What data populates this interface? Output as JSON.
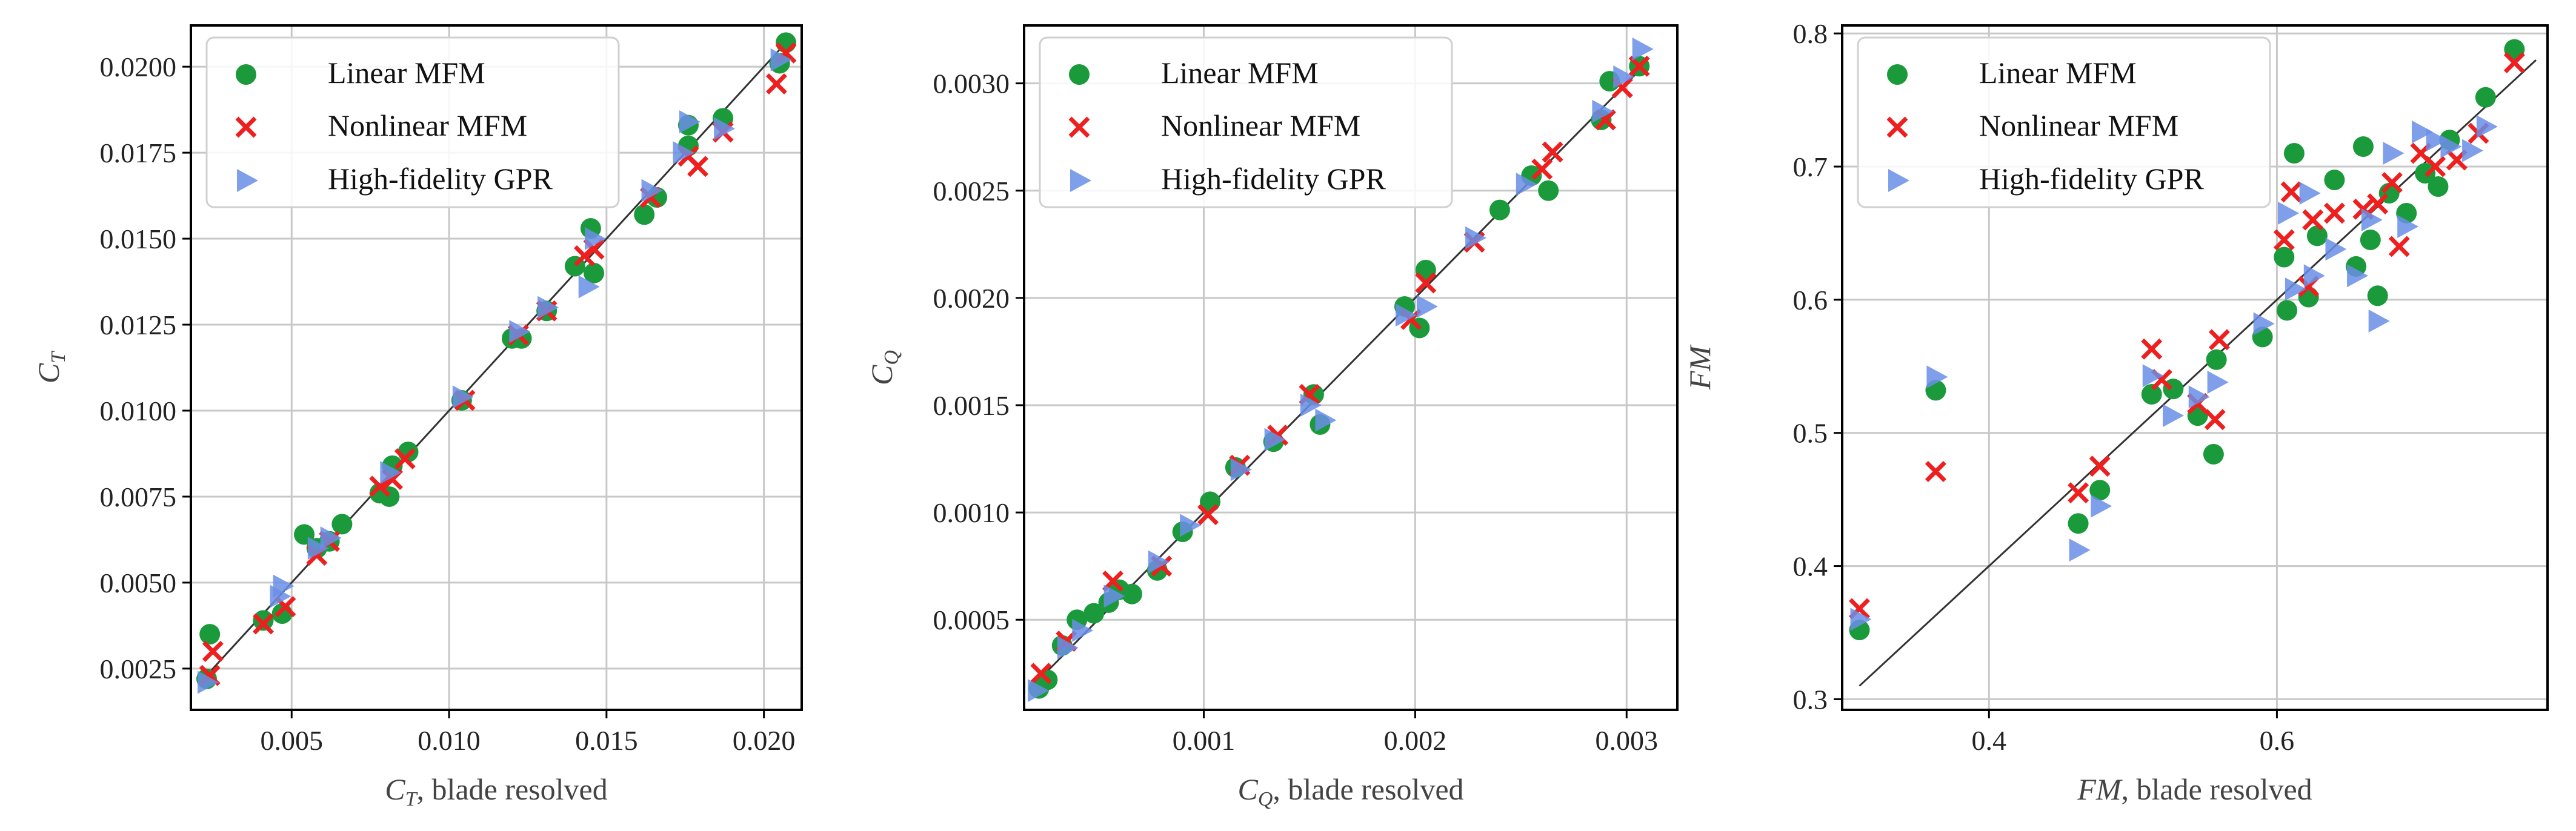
{
  "colors": {
    "linear": "#1a9a3a",
    "nonlinear": "#ee1f1f",
    "gpr": "#6a8ee6",
    "grid": "#c8c8c8",
    "diag": "#333333"
  },
  "legend_labels": [
    "Linear MFM",
    "Nonlinear MFM",
    "High-fidelity GPR"
  ],
  "chart_data": [
    {
      "type": "scatter",
      "ylabel": "C_T",
      "xlabel": "C_T, blade resolved",
      "xlim": [
        0.0018,
        0.0212
      ],
      "ylim": [
        0.0013,
        0.0212
      ],
      "xticks": [
        0.005,
        0.01,
        0.015,
        0.02
      ],
      "xtick_labels": [
        "0.005",
        "0.010",
        "0.015",
        "0.020"
      ],
      "yticks": [
        0.0025,
        0.005,
        0.0075,
        0.01,
        0.0125,
        0.015,
        0.0175,
        0.02
      ],
      "ytick_labels": [
        "0.0025",
        "0.0050",
        "0.0075",
        "0.0100",
        "0.0125",
        "0.0150",
        "0.0175",
        "0.0200"
      ],
      "grid": true,
      "legend_position": "upper-left",
      "diagonal": [
        0.0022,
        0.0208
      ],
      "series": [
        {
          "name": "Linear MFM",
          "marker": "circle",
          "points": [
            [
              0.0023,
              0.0022
            ],
            [
              0.0024,
              0.0035
            ],
            [
              0.0041,
              0.0039
            ],
            [
              0.0047,
              0.0041
            ],
            [
              0.0054,
              0.0064
            ],
            [
              0.0058,
              0.006
            ],
            [
              0.0062,
              0.0062
            ],
            [
              0.0066,
              0.0067
            ],
            [
              0.0078,
              0.0076
            ],
            [
              0.0081,
              0.0075
            ],
            [
              0.0082,
              0.0084
            ],
            [
              0.0087,
              0.0088
            ],
            [
              0.0104,
              0.0103
            ],
            [
              0.012,
              0.0121
            ],
            [
              0.0123,
              0.0121
            ],
            [
              0.0131,
              0.0129
            ],
            [
              0.014,
              0.0142
            ],
            [
              0.0146,
              0.014
            ],
            [
              0.0145,
              0.0153
            ],
            [
              0.0162,
              0.0157
            ],
            [
              0.0166,
              0.0162
            ],
            [
              0.0176,
              0.0177
            ],
            [
              0.0176,
              0.0183
            ],
            [
              0.0187,
              0.0185
            ],
            [
              0.0205,
              0.0201
            ],
            [
              0.0207,
              0.0207
            ]
          ]
        },
        {
          "name": "Nonlinear MFM",
          "marker": "x",
          "points": [
            [
              0.0024,
              0.0023
            ],
            [
              0.0025,
              0.003
            ],
            [
              0.0041,
              0.0038
            ],
            [
              0.0048,
              0.0043
            ],
            [
              0.0058,
              0.0058
            ],
            [
              0.0062,
              0.0062
            ],
            [
              0.0078,
              0.0078
            ],
            [
              0.0082,
              0.008
            ],
            [
              0.0086,
              0.0086
            ],
            [
              0.0105,
              0.0103
            ],
            [
              0.0122,
              0.0122
            ],
            [
              0.0131,
              0.0129
            ],
            [
              0.0143,
              0.0145
            ],
            [
              0.0146,
              0.0147
            ],
            [
              0.0164,
              0.0162
            ],
            [
              0.0176,
              0.0174
            ],
            [
              0.0179,
              0.0171
            ],
            [
              0.0187,
              0.0181
            ],
            [
              0.0204,
              0.0195
            ],
            [
              0.0207,
              0.0204
            ]
          ]
        },
        {
          "name": "High-fidelity GPR",
          "marker": "triangle",
          "points": [
            [
              0.0023,
              0.0021
            ],
            [
              0.0046,
              0.0046
            ],
            [
              0.0047,
              0.0049
            ],
            [
              0.0058,
              0.006
            ],
            [
              0.0062,
              0.0063
            ],
            [
              0.0081,
              0.0082
            ],
            [
              0.0104,
              0.0104
            ],
            [
              0.0122,
              0.0123
            ],
            [
              0.0131,
              0.013
            ],
            [
              0.0144,
              0.0136
            ],
            [
              0.0146,
              0.015
            ],
            [
              0.0164,
              0.0164
            ],
            [
              0.0174,
              0.0175
            ],
            [
              0.0176,
              0.0184
            ],
            [
              0.0187,
              0.0182
            ],
            [
              0.0205,
              0.0202
            ]
          ]
        }
      ]
    },
    {
      "type": "scatter",
      "ylabel": "C_Q",
      "xlabel": "C_Q, blade resolved",
      "xlim": [
        0.00015,
        0.00324
      ],
      "ylim": [
        8e-05,
        0.00327
      ],
      "xticks": [
        0.001,
        0.002,
        0.003
      ],
      "xtick_labels": [
        "0.001",
        "0.002",
        "0.003"
      ],
      "yticks": [
        0.0005,
        0.001,
        0.0015,
        0.002,
        0.0025,
        0.003
      ],
      "ytick_labels": [
        "0.0005",
        "0.0010",
        "0.0015",
        "0.0020",
        "0.0025",
        "0.0030"
      ],
      "grid": true,
      "legend_position": "upper-left",
      "diagonal": [
        0.0002,
        0.0031
      ],
      "series": [
        {
          "name": "Linear MFM",
          "marker": "circle",
          "points": [
            [
              0.00022,
              0.00018
            ],
            [
              0.00026,
              0.00022
            ],
            [
              0.00033,
              0.00038
            ],
            [
              0.0004,
              0.0005
            ],
            [
              0.00048,
              0.00053
            ],
            [
              0.00055,
              0.00058
            ],
            [
              0.0006,
              0.00064
            ],
            [
              0.00066,
              0.00062
            ],
            [
              0.00078,
              0.00073
            ],
            [
              0.0009,
              0.00091
            ],
            [
              0.00103,
              0.00105
            ],
            [
              0.00115,
              0.00121
            ],
            [
              0.00133,
              0.00133
            ],
            [
              0.00152,
              0.00155
            ],
            [
              0.00155,
              0.00141
            ],
            [
              0.00195,
              0.00196
            ],
            [
              0.00202,
              0.00186
            ],
            [
              0.00205,
              0.00213
            ],
            [
              0.0024,
              0.00241
            ],
            [
              0.00255,
              0.00257
            ],
            [
              0.00263,
              0.0025
            ],
            [
              0.00288,
              0.00283
            ],
            [
              0.00292,
              0.00301
            ],
            [
              0.00306,
              0.00308
            ]
          ]
        },
        {
          "name": "Nonlinear MFM",
          "marker": "x",
          "points": [
            [
              0.00023,
              0.00025
            ],
            [
              0.00035,
              0.0004
            ],
            [
              0.00057,
              0.00068
            ],
            [
              0.0008,
              0.00075
            ],
            [
              0.00102,
              0.00099
            ],
            [
              0.00117,
              0.00122
            ],
            [
              0.00135,
              0.00136
            ],
            [
              0.0015,
              0.00155
            ],
            [
              0.00198,
              0.0019
            ],
            [
              0.00205,
              0.00207
            ],
            [
              0.00228,
              0.00226
            ],
            [
              0.0026,
              0.0026
            ],
            [
              0.00265,
              0.00268
            ],
            [
              0.0029,
              0.00283
            ],
            [
              0.00298,
              0.00298
            ],
            [
              0.00306,
              0.00308
            ]
          ]
        },
        {
          "name": "High-fidelity GPR",
          "marker": "triangle",
          "points": [
            [
              0.00021,
              0.00017
            ],
            [
              0.00035,
              0.00037
            ],
            [
              0.00042,
              0.00045
            ],
            [
              0.00057,
              0.00061
            ],
            [
              0.00078,
              0.00077
            ],
            [
              0.00093,
              0.00094
            ],
            [
              0.00117,
              0.0012
            ],
            [
              0.00133,
              0.00134
            ],
            [
              0.0015,
              0.0015
            ],
            [
              0.00157,
              0.00143
            ],
            [
              0.00195,
              0.00192
            ],
            [
              0.00205,
              0.00196
            ],
            [
              0.00228,
              0.00228
            ],
            [
              0.00252,
              0.00253
            ],
            [
              0.00288,
              0.00287
            ],
            [
              0.00298,
              0.00303
            ],
            [
              0.00307,
              0.00316
            ]
          ]
        }
      ]
    },
    {
      "type": "scatter",
      "ylabel": "FM",
      "xlabel": "FM, blade resolved",
      "xlim": [
        0.298,
        0.788
      ],
      "ylim": [
        0.292,
        0.806
      ],
      "xticks": [
        0.4,
        0.6
      ],
      "xtick_labels": [
        "0.4",
        "0.6"
      ],
      "yticks": [
        0.3,
        0.4,
        0.5,
        0.6,
        0.7,
        0.8
      ],
      "ytick_labels": [
        "0.3",
        "0.4",
        "0.5",
        "0.6",
        "0.7",
        "0.8"
      ],
      "grid": true,
      "legend_position": "upper-left",
      "diagonal": [
        0.31,
        0.78
      ],
      "series": [
        {
          "name": "Linear MFM",
          "marker": "circle",
          "points": [
            [
              0.31,
              0.352
            ],
            [
              0.363,
              0.532
            ],
            [
              0.462,
              0.432
            ],
            [
              0.477,
              0.457
            ],
            [
              0.513,
              0.529
            ],
            [
              0.528,
              0.533
            ],
            [
              0.545,
              0.513
            ],
            [
              0.556,
              0.484
            ],
            [
              0.558,
              0.555
            ],
            [
              0.59,
              0.572
            ],
            [
              0.605,
              0.632
            ],
            [
              0.607,
              0.592
            ],
            [
              0.612,
              0.71
            ],
            [
              0.622,
              0.602
            ],
            [
              0.628,
              0.648
            ],
            [
              0.64,
              0.69
            ],
            [
              0.655,
              0.625
            ],
            [
              0.66,
              0.715
            ],
            [
              0.665,
              0.645
            ],
            [
              0.67,
              0.603
            ],
            [
              0.678,
              0.68
            ],
            [
              0.69,
              0.665
            ],
            [
              0.703,
              0.695
            ],
            [
              0.712,
              0.685
            ],
            [
              0.72,
              0.72
            ],
            [
              0.745,
              0.752
            ],
            [
              0.765,
              0.788
            ]
          ]
        },
        {
          "name": "Nonlinear MFM",
          "marker": "x",
          "points": [
            [
              0.31,
              0.368
            ],
            [
              0.363,
              0.471
            ],
            [
              0.462,
              0.455
            ],
            [
              0.477,
              0.475
            ],
            [
              0.513,
              0.563
            ],
            [
              0.52,
              0.54
            ],
            [
              0.545,
              0.522
            ],
            [
              0.557,
              0.51
            ],
            [
              0.56,
              0.57
            ],
            [
              0.605,
              0.645
            ],
            [
              0.61,
              0.681
            ],
            [
              0.622,
              0.61
            ],
            [
              0.625,
              0.66
            ],
            [
              0.64,
              0.665
            ],
            [
              0.66,
              0.668
            ],
            [
              0.67,
              0.672
            ],
            [
              0.68,
              0.688
            ],
            [
              0.685,
              0.64
            ],
            [
              0.7,
              0.71
            ],
            [
              0.71,
              0.7
            ],
            [
              0.725,
              0.705
            ],
            [
              0.74,
              0.725
            ],
            [
              0.765,
              0.778
            ]
          ]
        },
        {
          "name": "High-fidelity GPR",
          "marker": "triangle",
          "points": [
            [
              0.31,
              0.36
            ],
            [
              0.363,
              0.542
            ],
            [
              0.462,
              0.412
            ],
            [
              0.477,
              0.445
            ],
            [
              0.513,
              0.543
            ],
            [
              0.527,
              0.513
            ],
            [
              0.545,
              0.527
            ],
            [
              0.558,
              0.538
            ],
            [
              0.59,
              0.582
            ],
            [
              0.607,
              0.665
            ],
            [
              0.612,
              0.608
            ],
            [
              0.622,
              0.68
            ],
            [
              0.625,
              0.618
            ],
            [
              0.64,
              0.638
            ],
            [
              0.655,
              0.618
            ],
            [
              0.665,
              0.66
            ],
            [
              0.67,
              0.584
            ],
            [
              0.68,
              0.71
            ],
            [
              0.69,
              0.655
            ],
            [
              0.7,
              0.726
            ],
            [
              0.71,
              0.72
            ],
            [
              0.72,
              0.715
            ],
            [
              0.735,
              0.712
            ],
            [
              0.745,
              0.73
            ]
          ]
        }
      ]
    }
  ]
}
